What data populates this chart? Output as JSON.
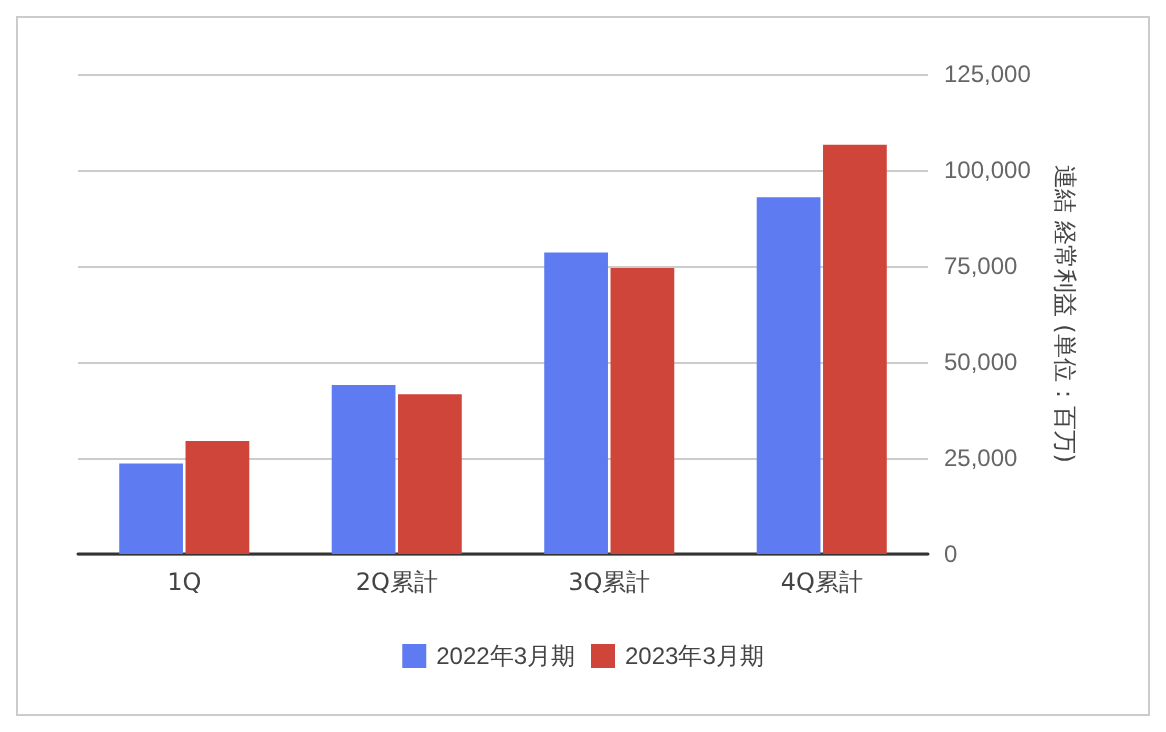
{
  "chart_data": {
    "type": "bar",
    "ylabel": "連結 経常利益 (単位：百万)",
    "categories": [
      "1Q",
      "2Q累計",
      "3Q累計",
      "4Q累計"
    ],
    "series": [
      {
        "name": "2022年3月期",
        "color": "#5f7bf2",
        "values": [
          23600,
          44000,
          78500,
          92900
        ]
      },
      {
        "name": "2023年3月期",
        "color": "#cf453a",
        "values": [
          29400,
          41600,
          74500,
          106600
        ]
      }
    ],
    "ylim": [
      0,
      125000
    ],
    "yticks": [
      0,
      {
        "value": 25000,
        "label": "25,000"
      },
      {
        "value": 50000,
        "label": "50,000"
      },
      {
        "value": 75000,
        "label": "75,000"
      },
      {
        "value": 100000,
        "label": "100,000"
      },
      {
        "value": 125000,
        "label": "125,000"
      }
    ],
    "grid": "y",
    "legend": "bottom"
  }
}
